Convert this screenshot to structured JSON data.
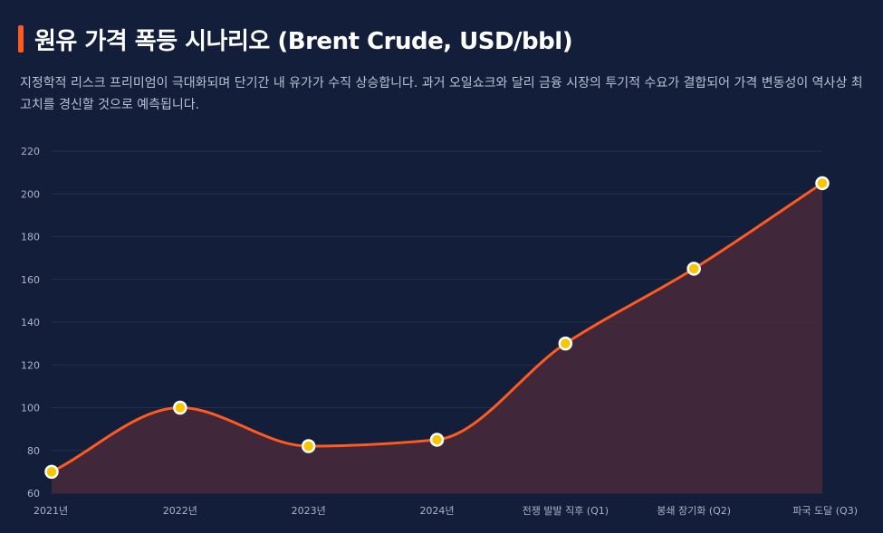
{
  "header": {
    "title": "원유 가격 폭등 시나리오 (Brent Crude, USD/bbl)",
    "subtitle": "지정학적 리스크 프리미엄이 극대화되며 단기간 내 유가가 수직 상승합니다. 과거 오일쇼크와 달리 금융 시장의 투기적 수요가 결합되어 가격 변동성이 역사상 최고치를 경신할 것으로 예측됩니다."
  },
  "colors": {
    "background": "#131f3a",
    "line": "#ff5a1f",
    "area": "#43283a",
    "marker_fill": "#f7c600",
    "marker_stroke": "#ffffff",
    "grid": "#23304d"
  },
  "chart_data": {
    "type": "line",
    "title": "원유 가격 폭등 시나리오 (Brent Crude, USD/bbl)",
    "xlabel": "",
    "ylabel": "",
    "categories": [
      "2021년",
      "2022년",
      "2023년",
      "2024년",
      "전쟁 발발 직후 (Q1)",
      "봉쇄 장기화 (Q2)",
      "파국 도달 (Q3)"
    ],
    "series": [
      {
        "values": [
          70,
          100,
          82,
          85,
          130,
          165,
          205
        ]
      }
    ],
    "ylim": [
      60,
      220
    ],
    "yticks": [
      60,
      80,
      100,
      120,
      140,
      160,
      180,
      200,
      220
    ],
    "grid": true,
    "fill_area": true,
    "smooth": true,
    "legend": "none"
  }
}
